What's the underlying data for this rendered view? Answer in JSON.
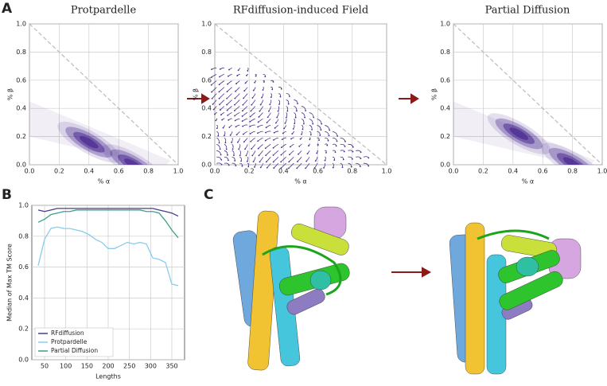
{
  "panel_labels": [
    "A",
    "B",
    "C"
  ],
  "chart_data": [
    {
      "type": "density",
      "title": "Protpardelle",
      "x_label": "% α",
      "y_label": "% β",
      "color": "#4b2c91",
      "x": [
        0.4,
        0.7
      ],
      "y": [
        0.16,
        0.0
      ],
      "xlim": [
        0,
        1
      ],
      "ylim": [
        0,
        1
      ],
      "xticks": [
        {
          "value": 0,
          "label": "0.0"
        },
        0.2,
        0.4,
        0.6,
        0.8,
        {
          "value": 1,
          "label": "1.0"
        }
      ],
      "yticks": [
        {
          "value": 0,
          "label": "0.0"
        },
        0.2,
        0.4,
        0.6,
        0.8,
        {
          "value": 1,
          "label": "1.0"
        }
      ],
      "grid": true
    },
    {
      "type": "field",
      "title": "RFdiffusion-induced Field",
      "x_label": "% α",
      "y_label": "% β",
      "color": "#4b2c91",
      "xlim": [
        0,
        1
      ],
      "ylim": [
        0,
        1
      ],
      "xticks": [
        {
          "value": 0,
          "label": "0.0"
        },
        0.2,
        0.4,
        0.6,
        0.8,
        {
          "value": 1,
          "label": "1.0"
        }
      ],
      "yticks": [
        {
          "value": 0,
          "label": "0.0"
        },
        0.2,
        0.4,
        0.6,
        0.8,
        {
          "value": 1,
          "label": "1.0"
        }
      ],
      "grid": true
    },
    {
      "type": "density",
      "title": "Partial Diffusion",
      "x_label": "% α",
      "y_label": "% β",
      "color": "#4b2c91",
      "x": [
        0.44,
        0.8
      ],
      "y": [
        0.22,
        0.01
      ],
      "xlim": [
        0,
        1
      ],
      "ylim": [
        0,
        1
      ],
      "xticks": [
        {
          "value": 0,
          "label": "0.0"
        },
        0.2,
        0.4,
        0.6,
        0.8,
        {
          "value": 1,
          "label": "1.0"
        }
      ],
      "yticks": [
        {
          "value": 0,
          "label": "0.0"
        },
        0.2,
        0.4,
        0.6,
        0.8,
        {
          "value": 1,
          "label": "1.0"
        }
      ],
      "grid": true
    },
    {
      "type": "line",
      "x_label": "Lengths",
      "y_label": "Median of Max TM Score",
      "x": [
        35,
        50,
        65,
        80,
        95,
        110,
        125,
        140,
        155,
        170,
        185,
        200,
        215,
        230,
        245,
        260,
        275,
        290,
        305,
        320,
        335,
        350,
        365
      ],
      "series": [
        {
          "name": "RFdiffusion",
          "color": "#4b3a8c",
          "values": [
            0.97,
            0.96,
            0.97,
            0.98,
            0.98,
            0.98,
            0.98,
            0.98,
            0.98,
            0.98,
            0.98,
            0.98,
            0.98,
            0.98,
            0.98,
            0.98,
            0.98,
            0.98,
            0.98,
            0.97,
            0.96,
            0.95,
            0.93
          ]
        },
        {
          "name": "Protpardelle",
          "color": "#87cdee",
          "values": [
            0.61,
            0.78,
            0.85,
            0.86,
            0.85,
            0.85,
            0.84,
            0.83,
            0.81,
            0.78,
            0.76,
            0.72,
            0.72,
            0.74,
            0.76,
            0.75,
            0.76,
            0.75,
            0.66,
            0.65,
            0.63,
            0.49,
            0.48
          ]
        },
        {
          "name": "Partial Diffusion",
          "color": "#3aa08a",
          "values": [
            0.89,
            0.91,
            0.94,
            0.95,
            0.96,
            0.96,
            0.97,
            0.97,
            0.97,
            0.97,
            0.97,
            0.97,
            0.97,
            0.97,
            0.97,
            0.97,
            0.97,
            0.96,
            0.96,
            0.95,
            0.9,
            0.84,
            0.79
          ]
        }
      ],
      "xlim": [
        20,
        380
      ],
      "ylim": [
        0,
        1
      ],
      "xticks": [
        50,
        100,
        150,
        200,
        250,
        300,
        350
      ],
      "yticks": [
        {
          "value": 0,
          "label": "0.0"
        },
        0.2,
        0.4,
        0.6,
        0.8,
        {
          "value": 1,
          "label": "1.0"
        }
      ],
      "grid": true,
      "legend": "lower-left"
    }
  ]
}
